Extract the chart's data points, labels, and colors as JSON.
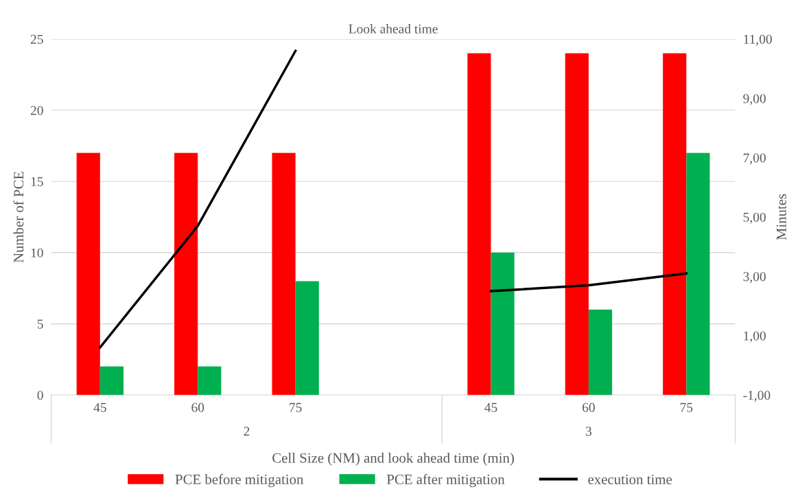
{
  "chart_data": {
    "type": "bar",
    "title": "Look ahead time",
    "xlabel": "Cell Size (NM) and look ahead time (min)",
    "ylabel": "Number of PCE",
    "y2label": "Minutes",
    "categories": [
      "45",
      "60",
      "75",
      null,
      "45",
      "60",
      "75"
    ],
    "series": [
      {
        "name": "PCE before mitigation",
        "color": "#ff0000",
        "values": [
          17,
          17,
          17,
          null,
          24,
          24,
          24
        ]
      },
      {
        "name": "PCE after mitigation",
        "color": "#00b050",
        "values": [
          2,
          2,
          8,
          null,
          10,
          6,
          17
        ]
      },
      {
        "name": "execution time",
        "type": "line",
        "axis": "y2",
        "color": "#000000",
        "values": [
          0.6,
          4.7,
          10.6,
          null,
          2.5,
          2.7,
          3.1
        ]
      }
    ],
    "annotations": [
      "2",
      "3"
    ],
    "ylim": [
      0,
      25
    ],
    "yticks": [
      0,
      5,
      10,
      15,
      20,
      25
    ],
    "y2lim": [
      -1,
      11
    ],
    "y2ticks": [
      {
        "value": -1,
        "label": "-1,00"
      },
      {
        "value": 1,
        "label": "1,00"
      },
      {
        "value": 3,
        "label": "3,00"
      },
      {
        "value": 5,
        "label": "5,00"
      },
      {
        "value": 7,
        "label": "7,00"
      },
      {
        "value": 9,
        "label": "9,00"
      },
      {
        "value": 11,
        "label": "11,00"
      }
    ],
    "grid": "y",
    "legend": "bottom",
    "marker": "none",
    "line_style": "solid"
  }
}
